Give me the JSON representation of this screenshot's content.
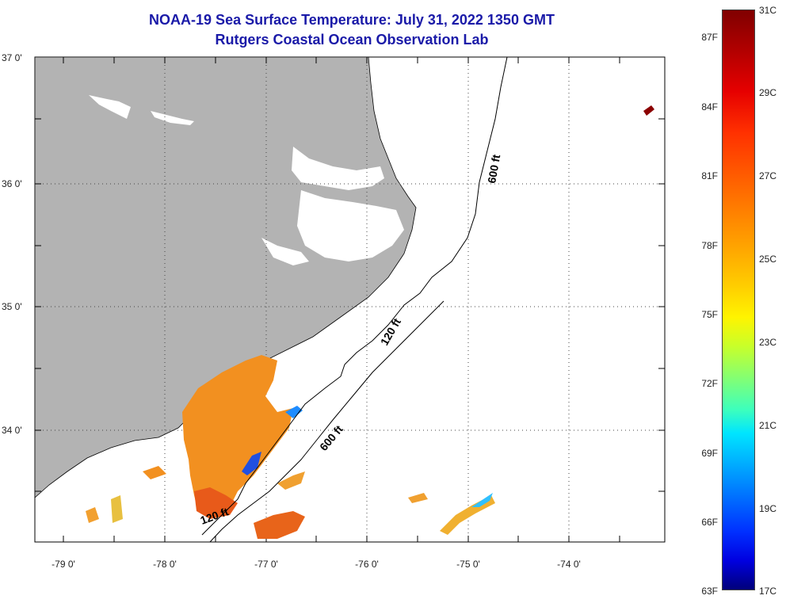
{
  "title": "NOAA-19 Sea Surface Temperature:  July 31, 2022 1350 GMT",
  "subtitle": "Rutgers Coastal Ocean Observation Lab",
  "lat_labels": [
    "37 0'",
    "36 0'",
    "35 0'",
    "34 0'"
  ],
  "lon_labels": [
    "-79 0'",
    "-78 0'",
    "-77 0'",
    "-76 0'",
    "-75 0'",
    "-74 0'"
  ],
  "contour_labels": {
    "c120_upper": "120 ft",
    "c120_lower": "120 ft",
    "c600_upper": "600 ft",
    "c600_lower": "600 ft"
  },
  "colorbar": {
    "fahrenheit": [
      "87F",
      "84F",
      "81F",
      "78F",
      "75F",
      "72F",
      "69F",
      "66F",
      "63F"
    ],
    "celsius": [
      "31C",
      "29C",
      "27C",
      "25C",
      "23C",
      "21C",
      "19C",
      "17C"
    ]
  },
  "colors": {
    "land": "#b3b3b3",
    "title": "#1a1aa8",
    "warm": "#f29020",
    "hot": "#e85a1a",
    "cool": "#2050e0"
  }
}
